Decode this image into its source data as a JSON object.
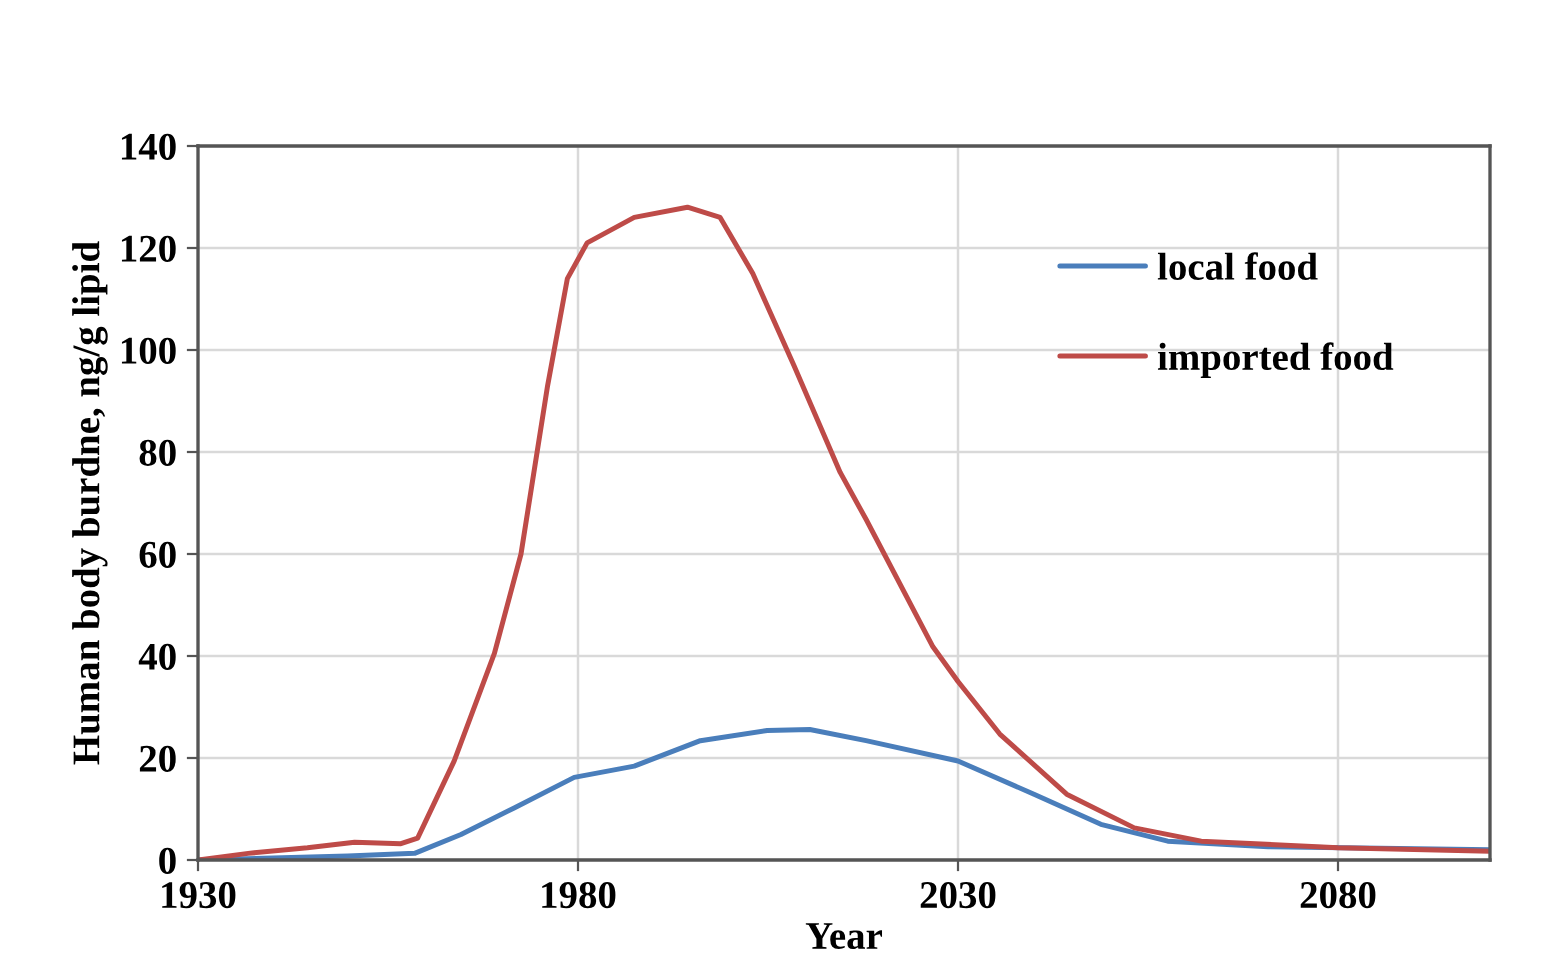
{
  "chart_data": {
    "type": "line",
    "xlabel": "Year",
    "ylabel": "Human body burdne, ng/g lipid",
    "xlim": [
      1930,
      2100
    ],
    "xticks": [
      1930,
      1980,
      2030,
      2080
    ],
    "ylim": [
      0,
      140
    ],
    "yticks": [
      0,
      20,
      40,
      60,
      80,
      100,
      120,
      140
    ],
    "grid": true,
    "legend": "top right",
    "marker": "none",
    "line_style": "solid",
    "series": [
      {
        "name": "local food",
        "color": "#4a7ebb",
        "x": [
          1930,
          1949.7,
          1958.5,
          1964.6,
          1971.6,
          1979.5,
          1987.4,
          1996.1,
          2004.9,
          2010.5,
          2017.9,
          2030,
          2040,
          2048.8,
          2057.6,
          2070.8,
          2100
        ],
        "values": [
          0,
          0.8,
          1.3,
          5,
          10.2,
          16.2,
          18.4,
          23.4,
          25.4,
          25.6,
          23.4,
          19.4,
          12.9,
          7,
          3.7,
          2.6,
          2
        ]
      },
      {
        "name": "imported food",
        "color": "#be4b48",
        "x": [
          1930,
          1936.6,
          1944.4,
          1950.6,
          1956.7,
          1958.9,
          1963.7,
          1969,
          1972.5,
          1976,
          1978.6,
          1981.2,
          1987.4,
          1994.4,
          1998.7,
          2003,
          2008.4,
          2014.5,
          2017.9,
          2026.7,
          2030,
          2035.5,
          2044.3,
          2053.2,
          2062,
          2080,
          2100
        ],
        "values": [
          0,
          1.3,
          2.4,
          3.5,
          3.2,
          4.3,
          19.4,
          40.5,
          60,
          93,
          114,
          121,
          126,
          128,
          126,
          115,
          97,
          76,
          66.8,
          41.8,
          35,
          24.7,
          12.9,
          6.3,
          3.7,
          2.4,
          1.7
        ]
      }
    ]
  }
}
